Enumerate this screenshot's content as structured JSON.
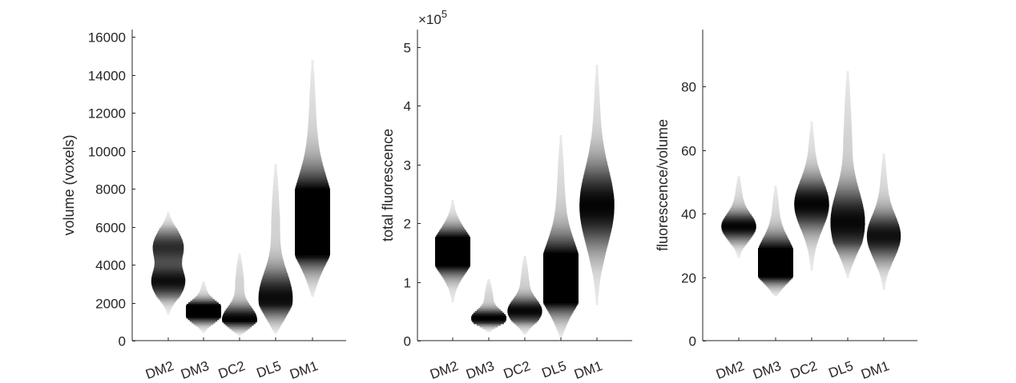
{
  "chart_data": [
    {
      "type": "violin",
      "categories": [
        "DM2",
        "DM3",
        "DC2",
        "DL5",
        "DM1"
      ],
      "ylabel": "volume (voxels)",
      "ylim": [
        0,
        16400
      ],
      "yticks": [
        0,
        2000,
        4000,
        6000,
        8000,
        10000,
        12000,
        14000,
        16000
      ],
      "ytick_labels": [
        "0",
        "2000",
        "4000",
        "6000",
        "8000",
        "10000",
        "12000",
        "14000",
        "16000"
      ],
      "exponent_label": "",
      "series": [
        {
          "category": "DM2",
          "range": [
            1400,
            6800
          ],
          "peaks": [
            [
              3100,
              0.85
            ],
            [
              4950,
              0.7
            ]
          ]
        },
        {
          "category": "DM3",
          "range": [
            400,
            3100
          ],
          "peaks": [
            [
              1700,
              0.9
            ],
            [
              1300,
              0.6
            ]
          ]
        },
        {
          "category": "DC2",
          "range": [
            300,
            4600
          ],
          "peaks": [
            [
              1100,
              0.95
            ]
          ]
        },
        {
          "category": "DL5",
          "range": [
            400,
            9300
          ],
          "peaks": [
            [
              2200,
              0.9
            ]
          ]
        },
        {
          "category": "DM1",
          "range": [
            2300,
            14800
          ],
          "peaks": [
            [
              5500,
              0.9
            ],
            [
              7000,
              0.85
            ]
          ]
        }
      ]
    },
    {
      "type": "violin",
      "categories": [
        "DM2",
        "DM3",
        "DC2",
        "DL5",
        "DM1"
      ],
      "ylabel": "total fluorescence",
      "ylim": [
        0,
        5.3
      ],
      "yticks": [
        0,
        1,
        2,
        3,
        4,
        5
      ],
      "ytick_labels": [
        "0",
        "1",
        "2",
        "3",
        "4",
        "5"
      ],
      "exponent_label": "×10",
      "exponent_power": "5",
      "series": [
        {
          "category": "DM2",
          "range": [
            0.65,
            2.4
          ],
          "peaks": [
            [
              1.4,
              0.9
            ],
            [
              1.65,
              0.8
            ]
          ]
        },
        {
          "category": "DM3",
          "range": [
            0.15,
            1.05
          ],
          "peaks": [
            [
              0.38,
              0.95
            ]
          ]
        },
        {
          "category": "DC2",
          "range": [
            0.1,
            1.45
          ],
          "peaks": [
            [
              0.5,
              0.9
            ]
          ]
        },
        {
          "category": "DL5",
          "range": [
            0.05,
            3.5
          ],
          "peaks": [
            [
              0.9,
              0.85
            ],
            [
              1.25,
              0.7
            ]
          ]
        },
        {
          "category": "DM1",
          "range": [
            0.6,
            4.7
          ],
          "peaks": [
            [
              2.3,
              0.9
            ]
          ]
        }
      ]
    },
    {
      "type": "violin",
      "categories": [
        "DM2",
        "DM3",
        "DC2",
        "DL5",
        "DM1"
      ],
      "ylabel": "fluorescence/volume",
      "ylim": [
        0,
        98
      ],
      "yticks": [
        0,
        20,
        40,
        60,
        80
      ],
      "ytick_labels": [
        "0",
        "20",
        "40",
        "60",
        "80"
      ],
      "exponent_label": "",
      "series": [
        {
          "category": "DM2",
          "range": [
            26,
            52
          ],
          "peaks": [
            [
              36,
              0.9
            ]
          ]
        },
        {
          "category": "DM3",
          "range": [
            14,
            49
          ],
          "peaks": [
            [
              22,
              0.9
            ],
            [
              28,
              0.7
            ]
          ]
        },
        {
          "category": "DC2",
          "range": [
            22,
            69
          ],
          "peaks": [
            [
              43,
              0.9
            ]
          ]
        },
        {
          "category": "DL5",
          "range": [
            20,
            85
          ],
          "peaks": [
            [
              37,
              0.9
            ]
          ]
        },
        {
          "category": "DM1",
          "range": [
            16,
            59
          ],
          "peaks": [
            [
              33,
              0.85
            ]
          ]
        }
      ]
    }
  ]
}
